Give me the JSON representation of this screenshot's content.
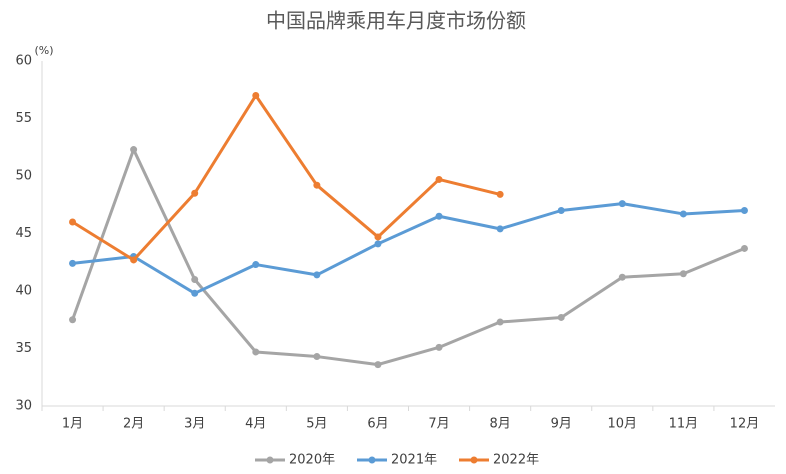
{
  "chart_data": {
    "type": "line",
    "title": "中国品牌乘用车月度市场份额",
    "ylabel": "(%)",
    "categories": [
      "1月",
      "2月",
      "3月",
      "4月",
      "5月",
      "6月",
      "7月",
      "8月",
      "9月",
      "10月",
      "11月",
      "12月"
    ],
    "series": [
      {
        "name": "2020年",
        "color": "#a5a5a5",
        "values": [
          37.5,
          52.3,
          41.0,
          34.7,
          34.3,
          33.6,
          35.1,
          37.3,
          37.7,
          41.2,
          41.5,
          43.7
        ]
      },
      {
        "name": "2021年",
        "color": "#5b9bd5",
        "values": [
          42.4,
          43.0,
          39.8,
          42.3,
          41.4,
          44.1,
          46.5,
          45.4,
          47.0,
          47.6,
          46.7,
          47.0
        ]
      },
      {
        "name": "2022年",
        "color": "#ed7d31",
        "values": [
          46.0,
          42.7,
          48.5,
          57.0,
          49.2,
          44.7,
          49.7,
          48.4,
          null,
          null,
          null,
          null
        ]
      }
    ],
    "ylim": [
      30,
      60
    ],
    "yticks": [
      30,
      35,
      40,
      45,
      50,
      55,
      60
    ],
    "grid": false,
    "legend": "bottom"
  }
}
